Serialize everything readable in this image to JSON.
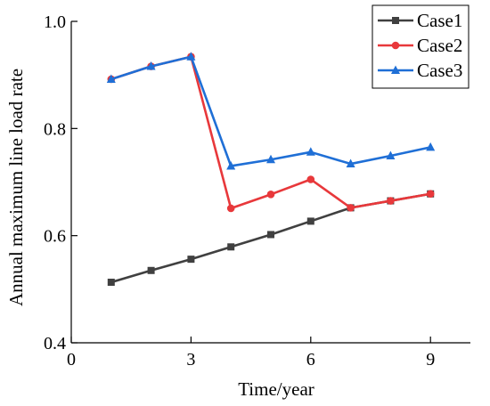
{
  "chart_data": {
    "type": "line",
    "title": "",
    "xlabel": "Time/year",
    "ylabel": "Annual maximum line load rate",
    "xlim": [
      0,
      10
    ],
    "ylim": [
      0.4,
      1.0
    ],
    "xticks": [
      0,
      3,
      6,
      9
    ],
    "yticks": [
      0.4,
      0.6,
      0.8,
      1.0
    ],
    "xtick_labels": [
      "0",
      "3",
      "6",
      "9"
    ],
    "ytick_labels": [
      "0.4",
      "0.6",
      "0.8",
      "1.0"
    ],
    "grid": false,
    "legend_position": "top-right",
    "x": [
      1,
      2,
      3,
      4,
      5,
      6,
      7,
      8,
      9
    ],
    "series": [
      {
        "name": "Case1",
        "color": "#404040",
        "marker": "square",
        "values": [
          0.513,
          0.535,
          0.556,
          0.579,
          0.602,
          0.627,
          0.652,
          0.665,
          0.678
        ]
      },
      {
        "name": "Case2",
        "color": "#e8383b",
        "marker": "circle",
        "values": [
          0.892,
          0.916,
          0.934,
          0.651,
          0.677,
          0.705,
          0.652,
          0.665,
          0.678
        ]
      },
      {
        "name": "Case3",
        "color": "#1f6fd6",
        "marker": "triangle",
        "values": [
          0.892,
          0.916,
          0.934,
          0.73,
          0.742,
          0.756,
          0.734,
          0.749,
          0.765
        ]
      }
    ]
  }
}
